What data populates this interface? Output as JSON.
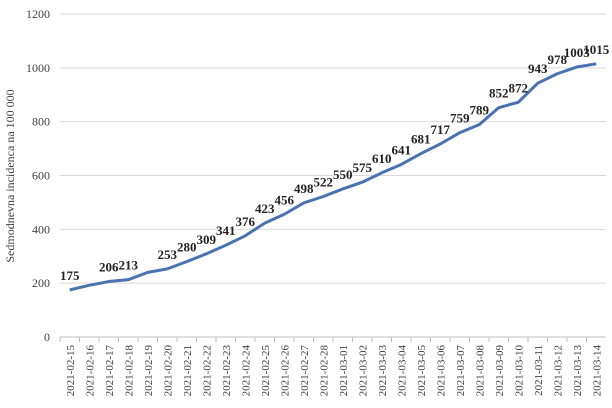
{
  "chart_data": {
    "type": "line",
    "y_label": "Sedmodnevna incidenca na 100 000",
    "categories": [
      "2021-02-15",
      "2021-02-16",
      "2021-02-17",
      "2021-02-18",
      "2021-02-19",
      "2021-02-20",
      "2021-02-21",
      "2021-02-22",
      "2021-02-23",
      "2021-02-24",
      "2021-02-25",
      "2021-02-26",
      "2021-02-27",
      "2021-02-28",
      "2021-03-01",
      "2021-03-02",
      "2021-03-03",
      "2021-03-04",
      "2021-03-05",
      "2021-03-06",
      "2021-03-07",
      "2021-03-08",
      "2021-03-09",
      "2021-03-10",
      "2021-03-11",
      "2021-03-12",
      "2021-03-13",
      "2021-03-14"
    ],
    "values": [
      175,
      192,
      206,
      213,
      240,
      253,
      280,
      309,
      341,
      376,
      423,
      456,
      498,
      522,
      550,
      575,
      610,
      641,
      681,
      717,
      759,
      789,
      852,
      872,
      943,
      978,
      1003,
      1015
    ],
    "value_labels": [
      "175",
      null,
      "206",
      "213",
      null,
      "253",
      "280",
      "309",
      "341",
      "376",
      "423",
      "456",
      "498",
      "522",
      "550",
      "575",
      "610",
      "641",
      "681",
      "717",
      "759",
      "789",
      "852",
      "872",
      "943",
      "978",
      "1003",
      "1015"
    ],
    "color": "#4a72b0",
    "ylim": [
      0,
      1200
    ],
    "yticks": [
      0,
      200,
      400,
      600,
      800,
      1000,
      1200
    ],
    "grid": true
  }
}
